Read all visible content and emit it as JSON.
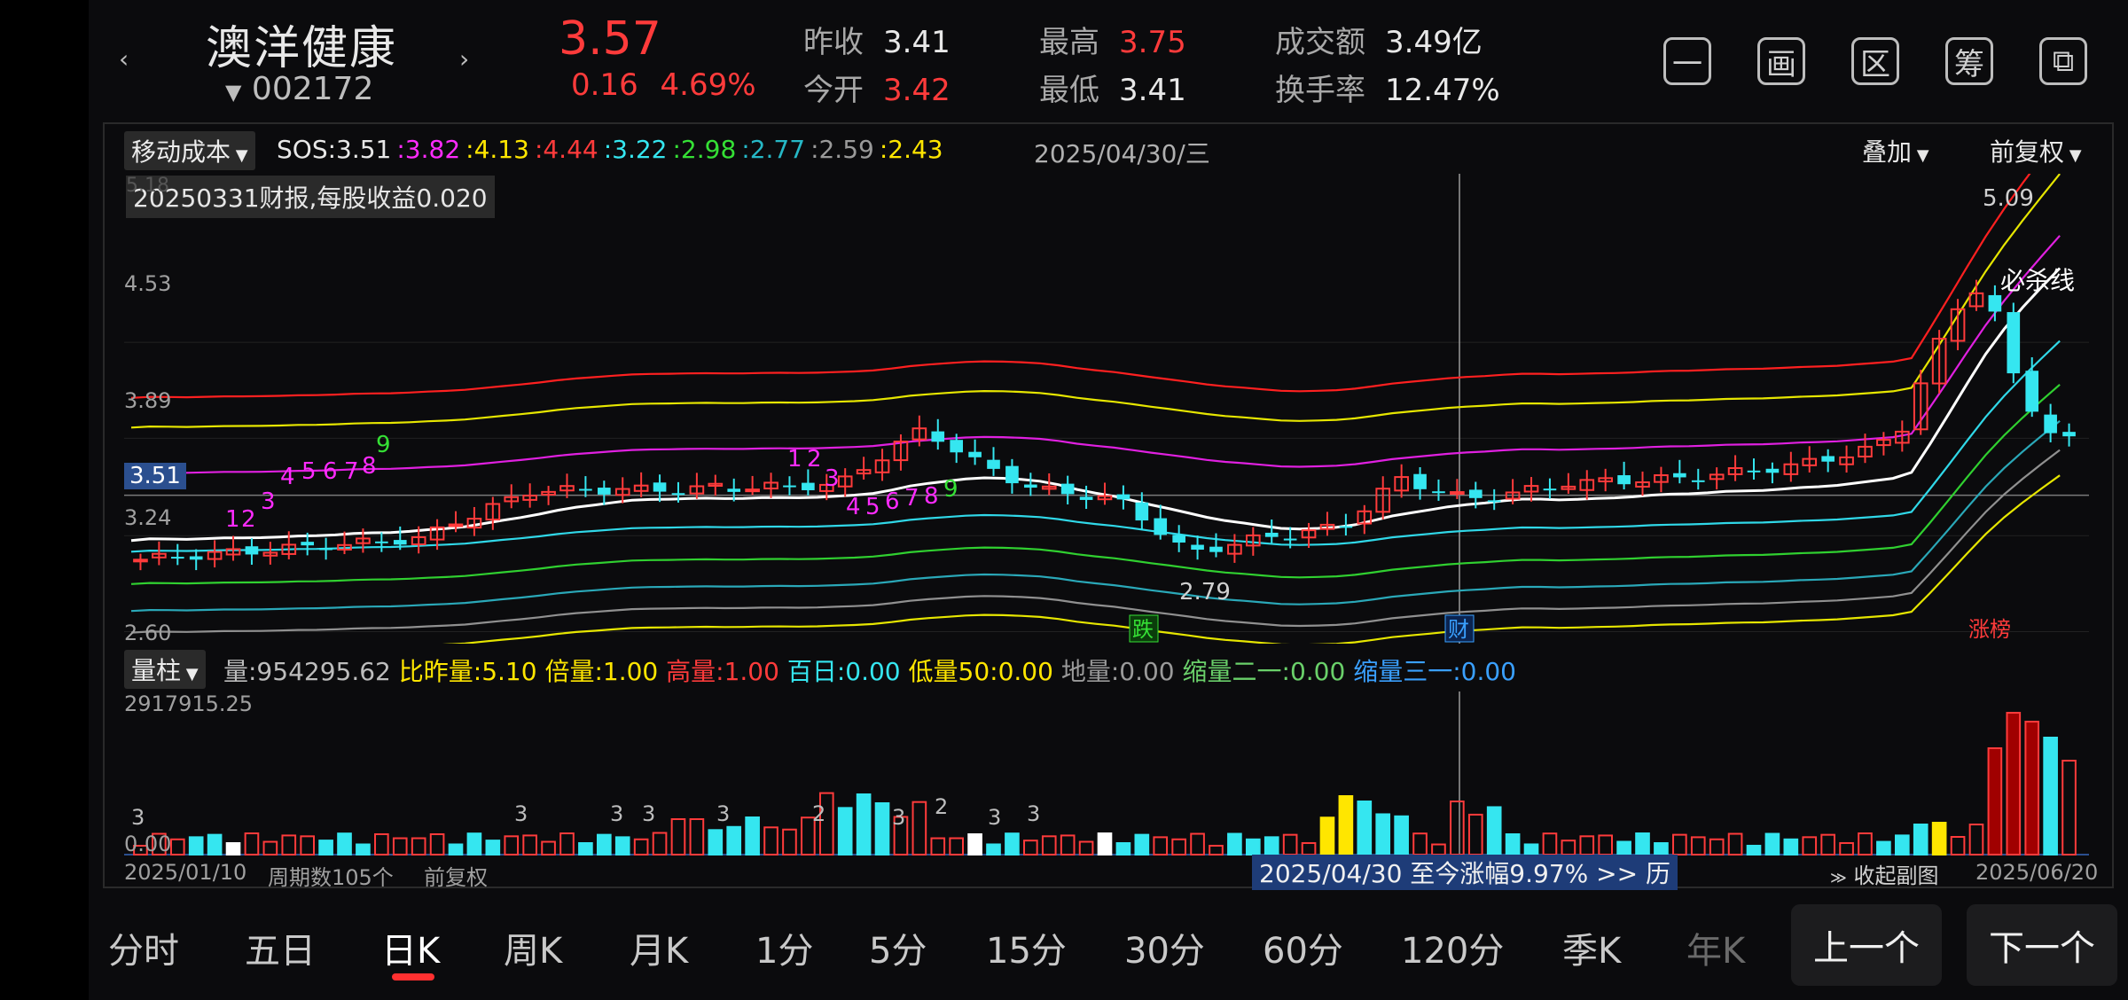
{
  "header": {
    "stock_name": "澳洋健康",
    "stock_code": "002172",
    "price": "3.57",
    "change": "0.16",
    "change_pct": "4.69%",
    "quotes": [
      {
        "label": "昨收",
        "value": "3.41",
        "color": "#e8e8e8"
      },
      {
        "label": "今开",
        "value": "3.42",
        "color": "#ff3b3b"
      },
      {
        "label": "最高",
        "value": "3.75",
        "color": "#ff3b3b"
      },
      {
        "label": "最低",
        "value": "3.41",
        "color": "#e8e8e8"
      },
      {
        "label": "成交额",
        "value": "3.49亿",
        "color": "#e8e8e8"
      },
      {
        "label": "换手率",
        "value": "12.47%",
        "color": "#e8e8e8"
      }
    ],
    "buttons": [
      {
        "name": "minimize-button",
        "glyph": "一"
      },
      {
        "name": "draw-button",
        "glyph": "画"
      },
      {
        "name": "range-button",
        "glyph": "区"
      },
      {
        "name": "chips-button",
        "glyph": "筹"
      },
      {
        "name": "rotate-button",
        "glyph": "⧉"
      }
    ]
  },
  "main_chart": {
    "indicator_selector": "移动成本",
    "sos_label": "SOS:",
    "sos_values": [
      {
        "v": "3.51",
        "color": "#e8e8e8"
      },
      {
        "v": ":3.82",
        "color": "#ff2bff"
      },
      {
        "v": ":4.13",
        "color": "#ffe600"
      },
      {
        "v": ":4.44",
        "color": "#ff3b3b"
      },
      {
        "v": ":3.22",
        "color": "#35e6f0"
      },
      {
        "v": ":2.98",
        "color": "#35e035"
      },
      {
        "v": ":2.77",
        "color": "#26b8c6"
      },
      {
        "v": ":2.59",
        "color": "#9a9a9a"
      },
      {
        "v": ":2.43",
        "color": "#ffe600"
      }
    ],
    "date": "2025/04/30/三",
    "overlay_selector": "叠加",
    "adjust_selector": "前复权",
    "tooltip": "20250331财报,每股收益0.020",
    "y_labels": [
      "4.53",
      "3.89",
      "3.24",
      "2.60"
    ],
    "top_label_hidden": "5.18",
    "current_price_tag": "3.51",
    "high_label": "5.09",
    "low_label": "2.79",
    "kill_line_label": "必杀线",
    "marker_die": "跌",
    "marker_cai": "财",
    "marker_zhangbang": "涨榜",
    "seq_nums": [
      "1",
      "2",
      "3",
      "4",
      "5",
      "6",
      "7",
      "8",
      "9",
      "1",
      "2",
      "3",
      "4",
      "5",
      "6",
      "7",
      "8",
      "9"
    ]
  },
  "volume_chart": {
    "selector": "量柱",
    "legend": [
      {
        "t": "量:",
        "v": "954295.62",
        "c": "#bdbdbd"
      },
      {
        "t": " 比昨量:",
        "v": "5.10",
        "c": "#ffe600"
      },
      {
        "t": " 倍量:",
        "v": "1.00",
        "c": "#ffe600"
      },
      {
        "t": " 高量:",
        "v": "1.00",
        "c": "#ff3b3b"
      },
      {
        "t": " 百日:",
        "v": "0.00",
        "c": "#35e6f0"
      },
      {
        "t": " 低量50:",
        "v": "0.00",
        "c": "#ffe600"
      },
      {
        "t": " 地量:",
        "v": "0.00",
        "c": "#9a9a9a"
      },
      {
        "t": " 缩量二一:",
        "v": "0.00",
        "c": "#6ad06a"
      },
      {
        "t": " 缩量三一:",
        "v": "0.00",
        "c": "#3aa0ff"
      }
    ],
    "max_label": "2917915.25",
    "zero_label": "0.00",
    "vol_nums": [
      "3",
      "3",
      "3",
      "3",
      "3",
      "2",
      "3",
      "2",
      "3",
      "3"
    ]
  },
  "footer": {
    "start_date": "2025/01/10",
    "period_count": "周期数105个",
    "adjust": "前复权",
    "range_banner": "2025/04/30 至今涨幅9.97%  >> 历",
    "collapse": "收起副图",
    "end_date": "2025/06/20"
  },
  "tabs": [
    "分时",
    "五日",
    "日K",
    "周K",
    "月K",
    "1分",
    "5分",
    "15分",
    "30分",
    "60分",
    "120分",
    "季K",
    "年K"
  ],
  "active_tab": "日K",
  "prev_button": "上一个",
  "next_button": "下一个",
  "colors": {
    "up": "#ff3b3b",
    "down": "#35e6f0",
    "bg": "#0b0b0d"
  }
}
